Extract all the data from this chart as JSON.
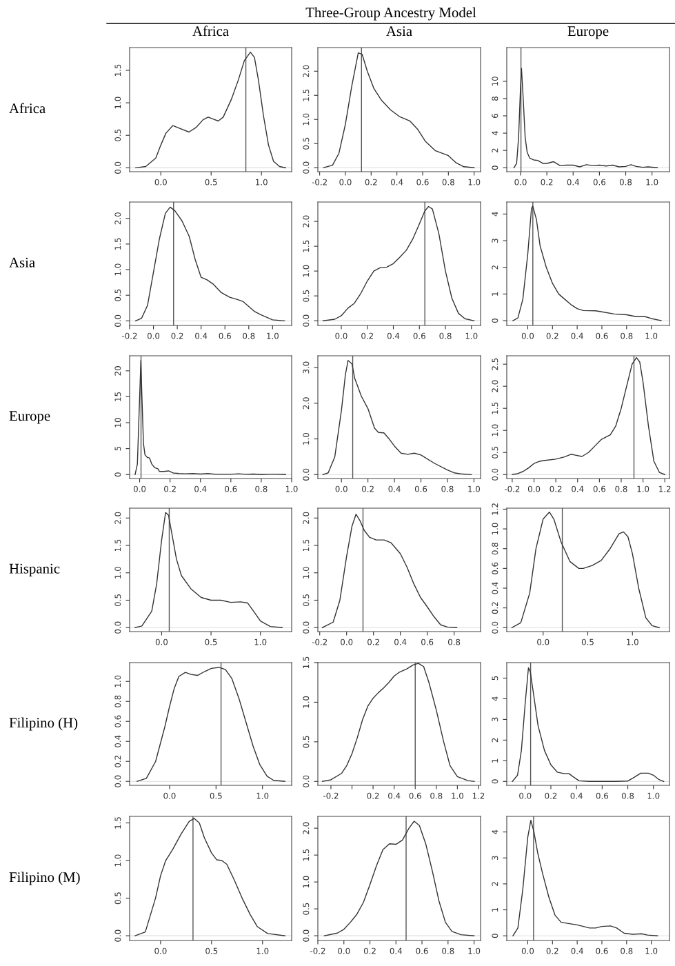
{
  "chart_data": [
    {
      "type": "line",
      "title": "Africa",
      "ylabel": "Africa",
      "annotations": [
        "Three-Group Ancestry Model"
      ],
      "color": "#333333",
      "xlim": [
        -0.31,
        1.3
      ],
      "ylim": [
        -0.06,
        1.85
      ],
      "xticks": [
        {
          "value": 0,
          "label": "0.0"
        },
        {
          "value": 0.5,
          "label": "0.5"
        },
        {
          "value": 1,
          "label": "1.0"
        }
      ],
      "yticks": [
        {
          "value": 0,
          "label": "0.0"
        },
        {
          "value": 0.5,
          "label": "0.5"
        },
        {
          "value": 1,
          "label": "1.0"
        },
        {
          "value": 1.5,
          "label": "1.5"
        }
      ],
      "ref_lines": [
        {
          "axis": "x",
          "value": 0.845,
          "color": "#555555"
        },
        {
          "axis": "y",
          "value": 0,
          "color": "#dddddd"
        }
      ],
      "x": [
        -0.25,
        -0.15,
        -0.05,
        0.0,
        0.05,
        0.12,
        0.2,
        0.28,
        0.35,
        0.42,
        0.47,
        0.52,
        0.57,
        0.62,
        0.7,
        0.77,
        0.83,
        0.89,
        0.93,
        0.97,
        1.02,
        1.07,
        1.12,
        1.18,
        1.24
      ],
      "values": [
        0,
        0.02,
        0.15,
        0.35,
        0.53,
        0.65,
        0.6,
        0.55,
        0.62,
        0.74,
        0.78,
        0.75,
        0.72,
        0.78,
        1.05,
        1.35,
        1.65,
        1.78,
        1.7,
        1.35,
        0.8,
        0.35,
        0.1,
        0.02,
        0
      ]
    },
    {
      "type": "line",
      "title": "Asia",
      "color": "#333333",
      "xlim": [
        -0.214,
        1.05
      ],
      "ylim": [
        -0.083,
        2.49
      ],
      "xticks": [
        {
          "value": -0.2,
          "label": "-0.2"
        },
        {
          "value": 0,
          "label": "0.0"
        },
        {
          "value": 0.2,
          "label": "0.2"
        },
        {
          "value": 0.4,
          "label": "0.4"
        },
        {
          "value": 0.6,
          "label": "0.6"
        },
        {
          "value": 0.8,
          "label": "0.8"
        },
        {
          "value": 1,
          "label": "1.0"
        }
      ],
      "yticks": [
        {
          "value": 0,
          "label": "0.0"
        },
        {
          "value": 0.5,
          "label": "0.5"
        },
        {
          "value": 1,
          "label": "1.0"
        },
        {
          "value": 1.5,
          "label": "1.5"
        },
        {
          "value": 2,
          "label": "2.0"
        }
      ],
      "ref_lines": [
        {
          "axis": "x",
          "value": 0.125,
          "color": "#555555"
        },
        {
          "axis": "y",
          "value": 0,
          "color": "#dddddd"
        }
      ],
      "x": [
        -0.17,
        -0.1,
        -0.05,
        0.0,
        0.05,
        0.1,
        0.13,
        0.17,
        0.22,
        0.28,
        0.35,
        0.42,
        0.5,
        0.56,
        0.62,
        0.7,
        0.8,
        0.86,
        0.92,
        1.0
      ],
      "values": [
        0,
        0.05,
        0.3,
        0.9,
        1.7,
        2.38,
        2.35,
        2.0,
        1.65,
        1.4,
        1.2,
        1.06,
        0.97,
        0.8,
        0.55,
        0.35,
        0.25,
        0.1,
        0.02,
        0
      ]
    },
    {
      "type": "line",
      "title": "Europe",
      "color": "#333333",
      "xlim": [
        -0.105,
        1.133
      ],
      "ylim": [
        -0.46,
        13.9
      ],
      "xticks": [
        {
          "value": 0,
          "label": "0.0"
        },
        {
          "value": 0.2,
          "label": "0.2"
        },
        {
          "value": 0.4,
          "label": "0.4"
        },
        {
          "value": 0.6,
          "label": "0.6"
        },
        {
          "value": 0.8,
          "label": "0.8"
        },
        {
          "value": 1,
          "label": "1.0"
        }
      ],
      "yticks": [
        0,
        2,
        4,
        6,
        8,
        10
      ],
      "ref_lines": [
        {
          "axis": "x",
          "value": 0.003,
          "color": "#555555"
        },
        {
          "axis": "y",
          "value": 0,
          "color": "#dddddd"
        }
      ],
      "x": [
        -0.05,
        -0.03,
        -0.015,
        0.0,
        0.007,
        0.02,
        0.035,
        0.05,
        0.07,
        0.1,
        0.13,
        0.17,
        0.2,
        0.25,
        0.3,
        0.35,
        0.4,
        0.45,
        0.5,
        0.55,
        0.6,
        0.65,
        0.7,
        0.75,
        0.8,
        0.84,
        0.88,
        0.93,
        0.97,
        1.04
      ],
      "values": [
        0,
        0.5,
        3.5,
        9.5,
        11.5,
        8,
        3.5,
        1.8,
        1.1,
        0.9,
        0.85,
        0.5,
        0.5,
        0.7,
        0.25,
        0.3,
        0.3,
        0.1,
        0.35,
        0.25,
        0.3,
        0.2,
        0.3,
        0.1,
        0.15,
        0.35,
        0.15,
        0.05,
        0.1,
        0
      ]
    },
    {
      "type": "line",
      "ylabel": "Asia",
      "color": "#333333",
      "xlim": [
        -0.2,
        1.16
      ],
      "ylim": [
        -0.09,
        2.32
      ],
      "xticks": [
        {
          "value": -0.2,
          "label": "-0.2"
        },
        {
          "value": 0,
          "label": "0.0"
        },
        {
          "value": 0.2,
          "label": "0.2"
        },
        {
          "value": 0.4,
          "label": "0.4"
        },
        {
          "value": 0.6,
          "label": "0.6"
        },
        {
          "value": 0.8,
          "label": "0.8"
        },
        {
          "value": 1,
          "label": "1.0"
        }
      ],
      "yticks": [
        {
          "value": 0,
          "label": "0.0"
        },
        {
          "value": 0.5,
          "label": "0.5"
        },
        {
          "value": 1,
          "label": "1.0"
        },
        {
          "value": 1.5,
          "label": "1.5"
        },
        {
          "value": 2,
          "label": "2.0"
        }
      ],
      "ref_lines": [
        {
          "axis": "x",
          "value": 0.169,
          "color": "#555555"
        },
        {
          "axis": "y",
          "value": 0,
          "color": "#dddddd"
        }
      ],
      "x": [
        -0.15,
        -0.1,
        -0.05,
        0.0,
        0.05,
        0.1,
        0.14,
        0.18,
        0.24,
        0.3,
        0.35,
        0.4,
        0.45,
        0.5,
        0.57,
        0.64,
        0.7,
        0.75,
        0.8,
        0.85,
        0.9,
        0.95,
        1.0,
        1.1
      ],
      "values": [
        0,
        0.05,
        0.3,
        0.95,
        1.6,
        2.1,
        2.22,
        2.15,
        1.95,
        1.65,
        1.2,
        0.85,
        0.8,
        0.72,
        0.55,
        0.46,
        0.42,
        0.38,
        0.28,
        0.18,
        0.12,
        0.07,
        0.02,
        0
      ]
    },
    {
      "type": "line",
      "color": "#333333",
      "xlim": [
        -0.18,
        1.07
      ],
      "ylim": [
        -0.095,
        2.39
      ],
      "xticks": [
        {
          "value": 0,
          "label": "0.0"
        },
        {
          "value": 0.2,
          "label": "0.2"
        },
        {
          "value": 0.4,
          "label": "0.4"
        },
        {
          "value": 0.6,
          "label": "0.6"
        },
        {
          "value": 0.8,
          "label": "0.8"
        },
        {
          "value": 1,
          "label": "1.0"
        }
      ],
      "yticks": [
        {
          "value": 0,
          "label": "0.0"
        },
        {
          "value": 0.5,
          "label": "0.5"
        },
        {
          "value": 1,
          "label": "1.0"
        },
        {
          "value": 1.5,
          "label": "1.5"
        },
        {
          "value": 2,
          "label": "2.0"
        }
      ],
      "ref_lines": [
        {
          "axis": "x",
          "value": 0.642,
          "color": "#555555"
        },
        {
          "axis": "y",
          "value": 0,
          "color": "#dddddd"
        }
      ],
      "x": [
        -0.14,
        -0.05,
        0.0,
        0.05,
        0.1,
        0.15,
        0.2,
        0.25,
        0.3,
        0.35,
        0.4,
        0.45,
        0.5,
        0.55,
        0.6,
        0.64,
        0.67,
        0.7,
        0.75,
        0.8,
        0.85,
        0.9,
        0.95,
        1.02
      ],
      "values": [
        0,
        0.03,
        0.1,
        0.25,
        0.35,
        0.55,
        0.8,
        1.0,
        1.07,
        1.08,
        1.15,
        1.28,
        1.42,
        1.65,
        1.95,
        2.2,
        2.3,
        2.25,
        1.75,
        1.0,
        0.45,
        0.15,
        0.04,
        0
      ]
    },
    {
      "type": "line",
      "color": "#333333",
      "xlim": [
        -0.17,
        1.147
      ],
      "ylim": [
        -0.18,
        4.45
      ],
      "xticks": [
        {
          "value": 0,
          "label": "0.0"
        },
        {
          "value": 0.2,
          "label": "0.2"
        },
        {
          "value": 0.4,
          "label": "0.4"
        },
        {
          "value": 0.6,
          "label": "0.6"
        },
        {
          "value": 0.8,
          "label": "0.8"
        },
        {
          "value": 1,
          "label": "1.0"
        }
      ],
      "yticks": [
        0,
        1,
        2,
        3,
        4
      ],
      "ref_lines": [
        {
          "axis": "x",
          "value": 0.041,
          "color": "#555555"
        },
        {
          "axis": "y",
          "value": 0,
          "color": "#dddddd"
        }
      ],
      "x": [
        -0.12,
        -0.08,
        -0.04,
        0.0,
        0.03,
        0.04,
        0.07,
        0.1,
        0.15,
        0.2,
        0.25,
        0.3,
        0.35,
        0.4,
        0.45,
        0.55,
        0.6,
        0.7,
        0.8,
        0.88,
        0.95,
        1.0,
        1.08
      ],
      "values": [
        0,
        0.1,
        0.8,
        2.5,
        4.2,
        4.3,
        3.8,
        2.8,
        2.0,
        1.4,
        1.0,
        0.8,
        0.6,
        0.45,
        0.38,
        0.37,
        0.33,
        0.25,
        0.22,
        0.15,
        0.15,
        0.08,
        0
      ]
    },
    {
      "type": "line",
      "ylabel": "Europe",
      "color": "#333333",
      "xlim": [
        -0.066,
        1.0
      ],
      "ylim": [
        -0.77,
        22.9
      ],
      "xticks": [
        {
          "value": 0,
          "label": "0.0"
        },
        {
          "value": 0.2,
          "label": "0.2"
        },
        {
          "value": 0.4,
          "label": "0.4"
        },
        {
          "value": 0.6,
          "label": "0.6"
        },
        {
          "value": 0.8,
          "label": "0.8"
        },
        {
          "value": 1,
          "label": "1.0"
        }
      ],
      "yticks": [
        0,
        5,
        10,
        15,
        20
      ],
      "ref_lines": [
        {
          "axis": "x",
          "value": 0.009,
          "color": "#555555"
        },
        {
          "axis": "y",
          "value": 0,
          "color": "#dddddd"
        }
      ],
      "x": [
        -0.03,
        -0.015,
        0.0,
        0.008,
        0.015,
        0.025,
        0.035,
        0.05,
        0.065,
        0.08,
        0.1,
        0.12,
        0.13,
        0.16,
        0.19,
        0.22,
        0.26,
        0.3,
        0.35,
        0.4,
        0.45,
        0.5,
        0.6,
        0.65,
        0.7,
        0.75,
        0.8,
        0.85,
        0.9,
        0.96
      ],
      "values": [
        0,
        2,
        15,
        22,
        15,
        6,
        3.8,
        3.3,
        3.2,
        2,
        1.3,
        1.1,
        0.6,
        0.6,
        0.7,
        0.3,
        0.2,
        0.15,
        0.2,
        0.1,
        0.2,
        0.05,
        0.05,
        0.15,
        0.05,
        0.1,
        0,
        0.05,
        0.05,
        0
      ]
    },
    {
      "type": "line",
      "color": "#333333",
      "xlim": [
        -0.178,
        1.05
      ],
      "ylim": [
        -0.11,
        3.33
      ],
      "xticks": [
        {
          "value": 0,
          "label": "0.0"
        },
        {
          "value": 0.2,
          "label": "0.2"
        },
        {
          "value": 0.4,
          "label": "0.4"
        },
        {
          "value": 0.6,
          "label": "0.6"
        },
        {
          "value": 0.8,
          "label": "0.8"
        },
        {
          "value": 1,
          "label": "1.0"
        }
      ],
      "yticks": [
        {
          "value": 0,
          "label": "0.0"
        },
        {
          "value": 1,
          "label": "1.0"
        },
        {
          "value": 2,
          "label": "2.0"
        },
        {
          "value": 3,
          "label": "3.0"
        }
      ],
      "ref_lines": [
        {
          "axis": "x",
          "value": 0.085,
          "color": "#555555"
        },
        {
          "axis": "y",
          "value": 0,
          "color": "#dddddd"
        }
      ],
      "x": [
        -0.14,
        -0.1,
        -0.05,
        0.0,
        0.03,
        0.05,
        0.08,
        0.1,
        0.15,
        0.2,
        0.25,
        0.28,
        0.32,
        0.36,
        0.4,
        0.45,
        0.5,
        0.55,
        0.6,
        0.7,
        0.8,
        0.85,
        0.9,
        0.98
      ],
      "values": [
        0,
        0.05,
        0.5,
        1.8,
        2.8,
        3.2,
        3.1,
        2.7,
        2.2,
        1.85,
        1.3,
        1.18,
        1.17,
        1.0,
        0.8,
        0.6,
        0.57,
        0.6,
        0.55,
        0.32,
        0.13,
        0.05,
        0.02,
        0
      ]
    },
    {
      "type": "line",
      "color": "#333333",
      "xlim": [
        -0.25,
        1.243
      ],
      "ylim": [
        -0.09,
        2.69
      ],
      "xticks": [
        {
          "value": -0.2,
          "label": "-0.2"
        },
        {
          "value": 0,
          "label": "0.0"
        },
        {
          "value": 0.2,
          "label": "0.2"
        },
        {
          "value": 0.4,
          "label": "0.4"
        },
        {
          "value": 0.6,
          "label": "0.6"
        },
        {
          "value": 0.8,
          "label": "0.8"
        },
        {
          "value": 1,
          "label": "1.0"
        },
        {
          "value": 1.2,
          "label": "1.2"
        }
      ],
      "yticks": [
        {
          "value": 0,
          "label": "0.0"
        },
        {
          "value": 0.5,
          "label": "0.5"
        },
        {
          "value": 1,
          "label": "1.0"
        },
        {
          "value": 1.5,
          "label": "1.5"
        },
        {
          "value": 2,
          "label": "2.0"
        },
        {
          "value": 2.5,
          "label": "2.5"
        }
      ],
      "ref_lines": [
        {
          "axis": "x",
          "value": 0.917,
          "color": "#555555"
        },
        {
          "axis": "y",
          "value": 0,
          "color": "#dddddd"
        }
      ],
      "x": [
        -0.2,
        -0.15,
        -0.1,
        -0.05,
        0.0,
        0.05,
        0.1,
        0.2,
        0.28,
        0.34,
        0.38,
        0.44,
        0.5,
        0.56,
        0.62,
        0.7,
        0.75,
        0.8,
        0.85,
        0.9,
        0.94,
        0.97,
        1.0,
        1.05,
        1.1,
        1.15,
        1.2
      ],
      "values": [
        0,
        0.02,
        0.07,
        0.15,
        0.25,
        0.3,
        0.32,
        0.35,
        0.4,
        0.46,
        0.44,
        0.41,
        0.5,
        0.65,
        0.8,
        0.9,
        1.1,
        1.5,
        2.0,
        2.5,
        2.65,
        2.55,
        2.1,
        1.1,
        0.3,
        0.05,
        0
      ]
    },
    {
      "type": "line",
      "ylabel": "Hispanic",
      "color": "#333333",
      "xlim": [
        -0.324,
        1.316
      ],
      "ylim": [
        -0.073,
        2.18
      ],
      "xticks": [
        {
          "value": 0,
          "label": "0.0"
        },
        {
          "value": 0.5,
          "label": "0.5"
        },
        {
          "value": 1,
          "label": "1.0"
        }
      ],
      "yticks": [
        {
          "value": 0,
          "label": "0.0"
        },
        {
          "value": 0.5,
          "label": "0.5"
        },
        {
          "value": 1,
          "label": "1.0"
        },
        {
          "value": 1.5,
          "label": "1.5"
        },
        {
          "value": 2,
          "label": "2.0"
        }
      ],
      "ref_lines": [
        {
          "axis": "x",
          "value": 0.077,
          "color": "#555555"
        },
        {
          "axis": "y",
          "value": 0,
          "color": "#dddddd"
        }
      ],
      "x": [
        -0.27,
        -0.2,
        -0.1,
        -0.05,
        0.0,
        0.04,
        0.07,
        0.1,
        0.15,
        0.2,
        0.3,
        0.4,
        0.5,
        0.6,
        0.7,
        0.8,
        0.87,
        0.95,
        1.0,
        1.1,
        1.22
      ],
      "values": [
        0,
        0.03,
        0.3,
        0.8,
        1.6,
        2.1,
        2.05,
        1.75,
        1.25,
        0.95,
        0.7,
        0.55,
        0.5,
        0.5,
        0.46,
        0.47,
        0.45,
        0.25,
        0.12,
        0.02,
        0
      ]
    },
    {
      "type": "line",
      "color": "#333333",
      "xlim": [
        -0.214,
        0.997
      ],
      "ylim": [
        -0.073,
        2.18
      ],
      "xticks": [
        {
          "value": -0.2,
          "label": "-0.2"
        },
        {
          "value": 0,
          "label": "0.0"
        },
        {
          "value": 0.2,
          "label": "0.2"
        },
        {
          "value": 0.4,
          "label": "0.4"
        },
        {
          "value": 0.6,
          "label": "0.6"
        },
        {
          "value": 0.8,
          "label": "0.8"
        }
      ],
      "yticks": [
        {
          "value": 0,
          "label": "0.0"
        },
        {
          "value": 0.5,
          "label": "0.5"
        },
        {
          "value": 1,
          "label": "1.0"
        },
        {
          "value": 1.5,
          "label": "1.5"
        },
        {
          "value": 2,
          "label": "2.0"
        }
      ],
      "ref_lines": [
        {
          "axis": "x",
          "value": 0.122,
          "color": "#555555"
        },
        {
          "axis": "y",
          "value": 0,
          "color": "#dddddd"
        }
      ],
      "x": [
        -0.18,
        -0.1,
        -0.05,
        0.0,
        0.04,
        0.07,
        0.1,
        0.13,
        0.17,
        0.22,
        0.28,
        0.33,
        0.4,
        0.45,
        0.5,
        0.55,
        0.6,
        0.65,
        0.7,
        0.75,
        0.82
      ],
      "values": [
        0,
        0.1,
        0.5,
        1.3,
        1.85,
        2.07,
        1.95,
        1.78,
        1.65,
        1.6,
        1.6,
        1.55,
        1.35,
        1.1,
        0.8,
        0.55,
        0.38,
        0.2,
        0.05,
        0.01,
        0
      ]
    },
    {
      "type": "line",
      "color": "#333333",
      "xlim": [
        -0.407,
        1.415
      ],
      "ylim": [
        -0.04,
        1.21
      ],
      "xticks": [
        {
          "value": 0,
          "label": "0.0"
        },
        {
          "value": 0.5,
          "label": "0.5"
        },
        {
          "value": 1,
          "label": "1.0"
        }
      ],
      "yticks": [
        {
          "value": 0,
          "label": "0.0"
        },
        {
          "value": 0.2,
          "label": "0.2"
        },
        {
          "value": 0.4,
          "label": "0.4"
        },
        {
          "value": 0.6,
          "label": "0.6"
        },
        {
          "value": 0.8,
          "label": "0.8"
        },
        {
          "value": 1,
          "label": "1.0"
        },
        {
          "value": 1.2,
          "label": "1.2"
        }
      ],
      "ref_lines": [
        {
          "axis": "x",
          "value": 0.215,
          "color": "#555555"
        },
        {
          "axis": "y",
          "value": 0,
          "color": "#dddddd"
        }
      ],
      "x": [
        -0.35,
        -0.25,
        -0.15,
        -0.08,
        0.0,
        0.07,
        0.12,
        0.2,
        0.3,
        0.4,
        0.45,
        0.55,
        0.65,
        0.75,
        0.85,
        0.9,
        0.95,
        1.0,
        1.07,
        1.15,
        1.22,
        1.3
      ],
      "values": [
        0,
        0.05,
        0.35,
        0.8,
        1.1,
        1.17,
        1.1,
        0.87,
        0.67,
        0.6,
        0.6,
        0.63,
        0.68,
        0.8,
        0.95,
        0.97,
        0.92,
        0.75,
        0.4,
        0.1,
        0.02,
        0
      ]
    },
    {
      "type": "line",
      "ylabel": "Filipino (H)",
      "color": "#333333",
      "xlim": [
        -0.43,
        1.314
      ],
      "ylim": [
        -0.04,
        1.188
      ],
      "xticks": [
        {
          "value": 0,
          "label": "0.0"
        },
        {
          "value": 0.5,
          "label": "0.5"
        },
        {
          "value": 1,
          "label": "1.0"
        }
      ],
      "yticks": [
        {
          "value": 0,
          "label": "0.0"
        },
        {
          "value": 0.2,
          "label": "0.2"
        },
        {
          "value": 0.4,
          "label": "0.4"
        },
        {
          "value": 0.6,
          "label": "0.6"
        },
        {
          "value": 0.8,
          "label": "0.8"
        },
        {
          "value": 1,
          "label": "1.0"
        }
      ],
      "ref_lines": [
        {
          "axis": "x",
          "value": 0.554,
          "color": "#555555"
        },
        {
          "axis": "y",
          "value": 0,
          "color": "#dddddd"
        }
      ],
      "x": [
        -0.35,
        -0.25,
        -0.15,
        -0.05,
        0.0,
        0.05,
        0.1,
        0.17,
        0.23,
        0.3,
        0.38,
        0.45,
        0.53,
        0.6,
        0.67,
        0.75,
        0.82,
        0.9,
        0.97,
        1.05,
        1.12,
        1.24
      ],
      "values": [
        0,
        0.03,
        0.2,
        0.55,
        0.75,
        0.93,
        1.05,
        1.09,
        1.07,
        1.06,
        1.1,
        1.13,
        1.14,
        1.12,
        1.03,
        0.82,
        0.6,
        0.35,
        0.17,
        0.05,
        0.01,
        0
      ]
    },
    {
      "type": "line",
      "color": "#333333",
      "xlim": [
        -0.324,
        1.22
      ],
      "ylim": [
        -0.05,
        1.5
      ],
      "xticks": [
        {
          "value": -0.2,
          "label": "-0.2"
        },
        {
          "value": 0,
          "label": null
        },
        {
          "value": 0.2,
          "label": "0.2"
        },
        {
          "value": 0.4,
          "label": "0.4"
        },
        {
          "value": 0.6,
          "label": "0.6"
        },
        {
          "value": 0.8,
          "label": "0.8"
        },
        {
          "value": 1,
          "label": "1.0"
        },
        {
          "value": 1.2,
          "label": "1.2"
        }
      ],
      "yticks": [
        {
          "value": 0,
          "label": "0.0"
        },
        {
          "value": 0.5,
          "label": "0.5"
        },
        {
          "value": 1,
          "label": "1.0"
        },
        {
          "value": 1.5,
          "label": "1.5"
        }
      ],
      "ref_lines": [
        {
          "axis": "x",
          "value": 0.6,
          "color": "#555555"
        },
        {
          "axis": "y",
          "value": 0,
          "color": "#dddddd"
        }
      ],
      "x": [
        -0.28,
        -0.2,
        -0.1,
        -0.05,
        0.0,
        0.05,
        0.1,
        0.15,
        0.2,
        0.25,
        0.3,
        0.35,
        0.4,
        0.45,
        0.52,
        0.58,
        0.63,
        0.68,
        0.73,
        0.8,
        0.87,
        0.93,
        1.0,
        1.1,
        1.16
      ],
      "values": [
        0,
        0.02,
        0.1,
        0.2,
        0.35,
        0.55,
        0.78,
        0.95,
        1.05,
        1.12,
        1.18,
        1.25,
        1.33,
        1.38,
        1.42,
        1.47,
        1.49,
        1.45,
        1.25,
        0.9,
        0.5,
        0.2,
        0.06,
        0.01,
        0
      ]
    },
    {
      "type": "line",
      "color": "#333333",
      "xlim": [
        -0.144,
        1.125
      ],
      "ylim": [
        -0.19,
        5.75
      ],
      "xticks": [
        {
          "value": 0,
          "label": "0.0"
        },
        {
          "value": 0.2,
          "label": "0.2"
        },
        {
          "value": 0.4,
          "label": "0.4"
        },
        {
          "value": 0.6,
          "label": "0.6"
        },
        {
          "value": 0.8,
          "label": "0.8"
        },
        {
          "value": 1,
          "label": "1.0"
        }
      ],
      "yticks": [
        0,
        1,
        2,
        3,
        4,
        5
      ],
      "ref_lines": [
        {
          "axis": "x",
          "value": 0.042,
          "color": "#555555"
        },
        {
          "axis": "y",
          "value": 0,
          "color": "#dddddd"
        }
      ],
      "x": [
        -0.1,
        -0.06,
        -0.03,
        0.0,
        0.025,
        0.04,
        0.07,
        0.1,
        0.15,
        0.2,
        0.25,
        0.3,
        0.34,
        0.38,
        0.42,
        0.5,
        0.7,
        0.8,
        0.85,
        0.9,
        0.96,
        1.0,
        1.04,
        1.08
      ],
      "values": [
        0,
        0.3,
        1.5,
        3.8,
        5.5,
        5.3,
        4.0,
        2.7,
        1.5,
        0.8,
        0.45,
        0.38,
        0.38,
        0.2,
        0.03,
        0,
        0,
        0.02,
        0.2,
        0.4,
        0.4,
        0.3,
        0.1,
        0
      ]
    },
    {
      "type": "line",
      "ylabel": "Filipino (M)",
      "color": "#333333",
      "xlim": [
        -0.304,
        1.286
      ],
      "ylim": [
        -0.063,
        1.587
      ],
      "xticks": [
        {
          "value": 0,
          "label": "0.0"
        },
        {
          "value": 0.5,
          "label": "0.5"
        },
        {
          "value": 1,
          "label": "1.0"
        }
      ],
      "yticks": [
        {
          "value": 0,
          "label": "0.0"
        },
        {
          "value": 0.5,
          "label": "0.5"
        },
        {
          "value": 1,
          "label": "1.0"
        },
        {
          "value": 1.5,
          "label": "1.5"
        }
      ],
      "ref_lines": [
        {
          "axis": "x",
          "value": 0.318,
          "color": "#555555"
        },
        {
          "axis": "y",
          "value": 0,
          "color": "#dddddd"
        }
      ],
      "x": [
        -0.25,
        -0.15,
        -0.05,
        0.0,
        0.05,
        0.12,
        0.2,
        0.28,
        0.33,
        0.38,
        0.43,
        0.5,
        0.55,
        0.6,
        0.65,
        0.72,
        0.8,
        0.88,
        0.95,
        1.05,
        1.22
      ],
      "values": [
        0,
        0.05,
        0.5,
        0.8,
        1.0,
        1.15,
        1.35,
        1.52,
        1.56,
        1.5,
        1.3,
        1.1,
        1.01,
        1.0,
        0.95,
        0.75,
        0.5,
        0.28,
        0.12,
        0.03,
        0
      ]
    },
    {
      "type": "line",
      "color": "#333333",
      "xlim": [
        -0.2,
        1.05
      ],
      "ylim": [
        -0.088,
        2.22
      ],
      "xticks": [
        {
          "value": -0.2,
          "label": "-0.2"
        },
        {
          "value": 0,
          "label": "0.0"
        },
        {
          "value": 0.2,
          "label": "0.2"
        },
        {
          "value": 0.4,
          "label": "0.4"
        },
        {
          "value": 0.6,
          "label": "0.6"
        },
        {
          "value": 0.8,
          "label": "0.8"
        },
        {
          "value": 1,
          "label": "1.0"
        }
      ],
      "yticks": [
        {
          "value": 0,
          "label": "0.0"
        },
        {
          "value": 0.5,
          "label": "0.5"
        },
        {
          "value": 1,
          "label": "1.0"
        },
        {
          "value": 1.5,
          "label": "1.5"
        },
        {
          "value": 2,
          "label": "2.0"
        }
      ],
      "ref_lines": [
        {
          "axis": "x",
          "value": 0.478,
          "color": "#555555"
        },
        {
          "axis": "y",
          "value": 0,
          "color": "#dddddd"
        }
      ],
      "x": [
        -0.15,
        -0.05,
        0.0,
        0.05,
        0.1,
        0.15,
        0.2,
        0.25,
        0.3,
        0.35,
        0.4,
        0.45,
        0.5,
        0.54,
        0.58,
        0.63,
        0.68,
        0.73,
        0.78,
        0.83,
        0.9,
        1.0
      ],
      "values": [
        0,
        0.05,
        0.12,
        0.25,
        0.4,
        0.62,
        0.95,
        1.3,
        1.6,
        1.71,
        1.7,
        1.78,
        2.0,
        2.13,
        2.05,
        1.7,
        1.2,
        0.65,
        0.25,
        0.08,
        0.02,
        0
      ]
    },
    {
      "type": "line",
      "color": "#333333",
      "xlim": [
        -0.17,
        1.147
      ],
      "ylim": [
        -0.18,
        4.6
      ],
      "xticks": [
        {
          "value": 0,
          "label": "0.0"
        },
        {
          "value": 0.2,
          "label": "0.2"
        },
        {
          "value": 0.4,
          "label": "0.4"
        },
        {
          "value": 0.6,
          "label": "0.6"
        },
        {
          "value": 0.8,
          "label": "0.8"
        },
        {
          "value": 1,
          "label": "1.0"
        }
      ],
      "yticks": [
        0,
        1,
        2,
        3,
        4
      ],
      "ref_lines": [
        {
          "axis": "x",
          "value": 0.047,
          "color": "#555555"
        },
        {
          "axis": "y",
          "value": 0,
          "color": "#dddddd"
        }
      ],
      "x": [
        -0.12,
        -0.08,
        -0.04,
        0.0,
        0.025,
        0.05,
        0.08,
        0.12,
        0.17,
        0.22,
        0.27,
        0.32,
        0.4,
        0.5,
        0.55,
        0.6,
        0.67,
        0.72,
        0.78,
        0.85,
        0.92,
        0.97,
        1.05
      ],
      "values": [
        0,
        0.3,
        1.8,
        3.8,
        4.45,
        4.0,
        3.2,
        2.4,
        1.5,
        0.8,
        0.52,
        0.48,
        0.42,
        0.3,
        0.3,
        0.36,
        0.38,
        0.3,
        0.1,
        0.06,
        0.08,
        0.03,
        0
      ]
    }
  ]
}
